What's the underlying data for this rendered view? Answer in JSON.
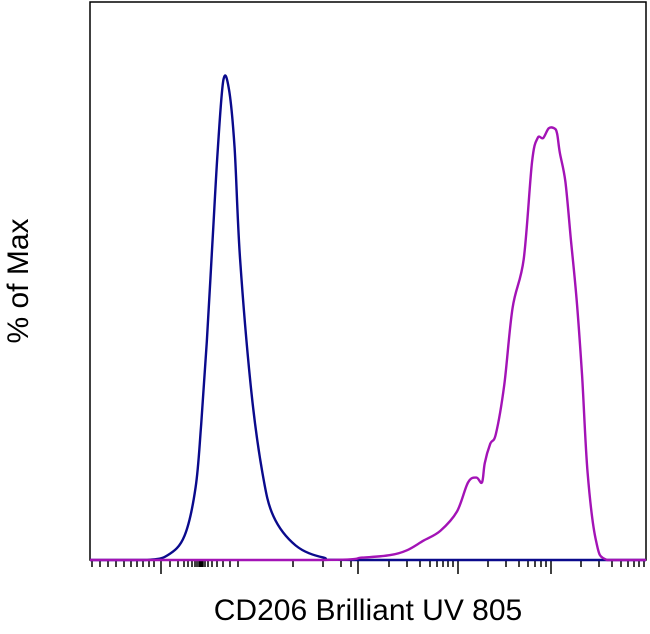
{
  "chart_data": {
    "type": "line",
    "title": "",
    "xlabel": "CD206 Brilliant UV 805",
    "ylabel": "% of Max",
    "xlim": [
      0,
      1
    ],
    "ylim": [
      0,
      1
    ],
    "grid": false,
    "legend": "none",
    "series": [
      {
        "color": "#0a0a8c",
        "x": [
          0.0,
          0.1,
          0.14,
          0.17,
          0.19,
          0.2,
          0.21,
          0.22,
          0.23,
          0.24,
          0.25,
          0.26,
          0.27,
          0.29,
          0.31,
          0.33,
          0.37,
          0.42,
          0.48,
          1.0
        ],
        "y": [
          0.0,
          0.0,
          0.01,
          0.05,
          0.15,
          0.28,
          0.45,
          0.65,
          0.85,
          0.99,
          0.97,
          0.85,
          0.62,
          0.35,
          0.18,
          0.09,
          0.03,
          0.005,
          0.0,
          0.0
        ]
      },
      {
        "color": "#a313b6",
        "x": [
          0.0,
          0.42,
          0.49,
          0.54,
          0.57,
          0.6,
          0.63,
          0.66,
          0.68,
          0.695,
          0.705,
          0.71,
          0.72,
          0.73,
          0.745,
          0.76,
          0.78,
          0.795,
          0.805,
          0.815,
          0.825,
          0.835,
          0.84,
          0.845,
          0.855,
          0.865,
          0.875,
          0.885,
          0.895,
          0.91,
          0.93,
          1.0
        ],
        "y": [
          0.0,
          0.0,
          0.005,
          0.01,
          0.02,
          0.04,
          0.06,
          0.1,
          0.16,
          0.17,
          0.16,
          0.2,
          0.24,
          0.26,
          0.36,
          0.52,
          0.62,
          0.82,
          0.87,
          0.87,
          0.89,
          0.89,
          0.88,
          0.84,
          0.78,
          0.66,
          0.54,
          0.38,
          0.18,
          0.04,
          0.0,
          0.0
        ]
      }
    ]
  }
}
